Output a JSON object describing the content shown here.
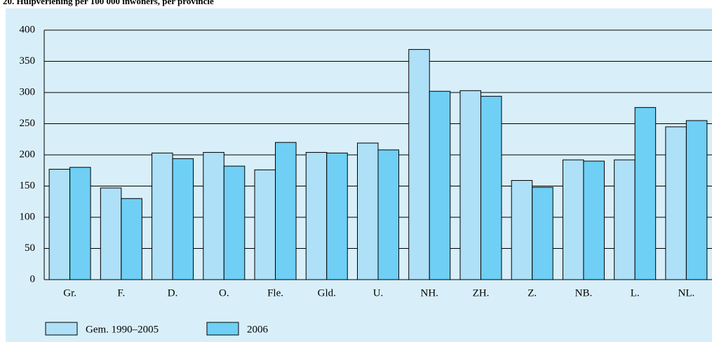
{
  "chart_data": {
    "type": "bar",
    "title": "20. Hulpverlening per 100 000 inwoners, per provincie",
    "categories": [
      "Gr.",
      "F.",
      "D.",
      "O.",
      "Fle.",
      "Gld.",
      "U.",
      "NH.",
      "ZH.",
      "Z.",
      "NB.",
      "L.",
      "NL."
    ],
    "series": [
      {
        "name": "Gem. 1990–2005",
        "color": "#aee0f8",
        "values": [
          177,
          147,
          203,
          204,
          176,
          204,
          219,
          369,
          303,
          159,
          192,
          192,
          245
        ]
      },
      {
        "name": "2006",
        "color": "#6fcff5",
        "values": [
          180,
          130,
          194,
          182,
          220,
          203,
          208,
          302,
          294,
          148,
          190,
          276,
          255
        ]
      }
    ],
    "ylim": [
      0,
      400
    ],
    "yticks": [
      0,
      50,
      100,
      150,
      200,
      250,
      300,
      350,
      400
    ],
    "grid": true,
    "legend": "bottom"
  }
}
